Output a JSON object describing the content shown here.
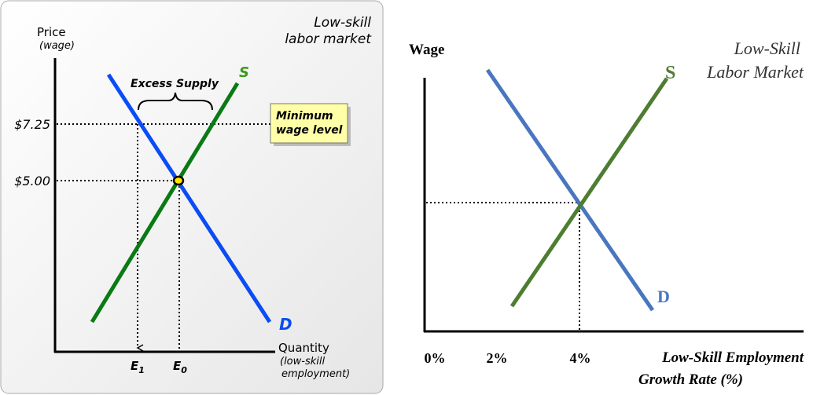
{
  "left_panel": {
    "title": [
      "Low-skill",
      "labor market"
    ],
    "y_axis": {
      "label": "Price",
      "sublabel": "(wage)"
    },
    "price_levels": [
      "$7.25",
      "$5.00"
    ],
    "excess_supply": "Excess Supply",
    "callout": [
      "Minimum",
      "wage level"
    ],
    "supply_label": "S",
    "demand_label": "D",
    "x_axis": {
      "label": "Quantity",
      "sublabel": [
        "(low-skill",
        "employment)"
      ]
    },
    "quantities": [
      {
        "letter": "E",
        "sub": "1"
      },
      {
        "letter": "E",
        "sub": "0"
      }
    ]
  },
  "right_panel": {
    "title": [
      "Low-Skill",
      "Labor Market"
    ],
    "y_axis_label": "Wage",
    "supply_label": "S",
    "demand_label": "D",
    "x_ticks": [
      "0%",
      "2%",
      "4%"
    ],
    "x_axis_label": [
      "Low-Skill Employment",
      "Growth Rate (%)"
    ]
  }
}
